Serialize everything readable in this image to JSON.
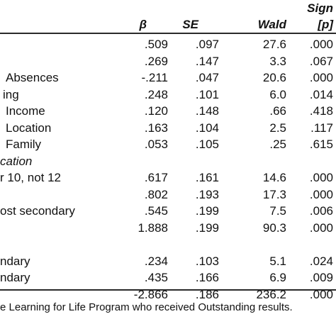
{
  "header": {
    "beta": "β",
    "se": "SE",
    "wald": "Wald",
    "sign_line1": "Sign",
    "sign_line2": "[p]"
  },
  "rows": [
    {
      "label": "",
      "beta": ".509",
      "se": ".097",
      "wald": "27.6",
      "sign": ".000"
    },
    {
      "label": "",
      "beta": ".269",
      "se": ".147",
      "wald": "3.3",
      "sign": ".067"
    },
    {
      "label": "Absences",
      "beta": "-.211",
      "se": ".047",
      "wald": "20.6",
      "sign": ".000"
    },
    {
      "label": "ing",
      "beta": ".248",
      "se": ".101",
      "wald": "6.0",
      "sign": ".014"
    },
    {
      "label": "Income",
      "beta": ".120",
      "se": ".148",
      "wald": ".66",
      "sign": ".418"
    },
    {
      "label": "Location",
      "beta": ".163",
      "se": ".104",
      "wald": "2.5",
      "sign": ".117"
    },
    {
      "label": "Family",
      "beta": ".053",
      "se": ".105",
      "wald": ".25",
      "sign": ".615"
    },
    {
      "label": "cation",
      "beta": "",
      "se": "",
      "wald": "",
      "sign": ""
    },
    {
      "label": "r 10, not 12",
      "beta": ".617",
      "se": ".161",
      "wald": "14.6",
      "sign": ".000"
    },
    {
      "label": "",
      "beta": ".802",
      "se": ".193",
      "wald": "17.3",
      "sign": ".000"
    },
    {
      "label": "ost secondary",
      "beta": ".545",
      "se": ".199",
      "wald": "7.5",
      "sign": ".006"
    },
    {
      "label": "",
      "beta": "1.888",
      "se": ".199",
      "wald": "90.3",
      "sign": ".000"
    },
    {
      "label": "",
      "beta": "",
      "se": "",
      "wald": "",
      "sign": ""
    },
    {
      "label": "ndary",
      "beta": ".234",
      "se": ".103",
      "wald": "5.1",
      "sign": ".024"
    },
    {
      "label": "ndary",
      "beta": ".435",
      "se": ".166",
      "wald": "6.9",
      "sign": ".009"
    },
    {
      "label": "",
      "beta": "-2.866",
      "se": ".186",
      "wald": "236.2",
      "sign": ".000"
    }
  ],
  "footnote": "e Learning for Life Program who received Outstanding results."
}
